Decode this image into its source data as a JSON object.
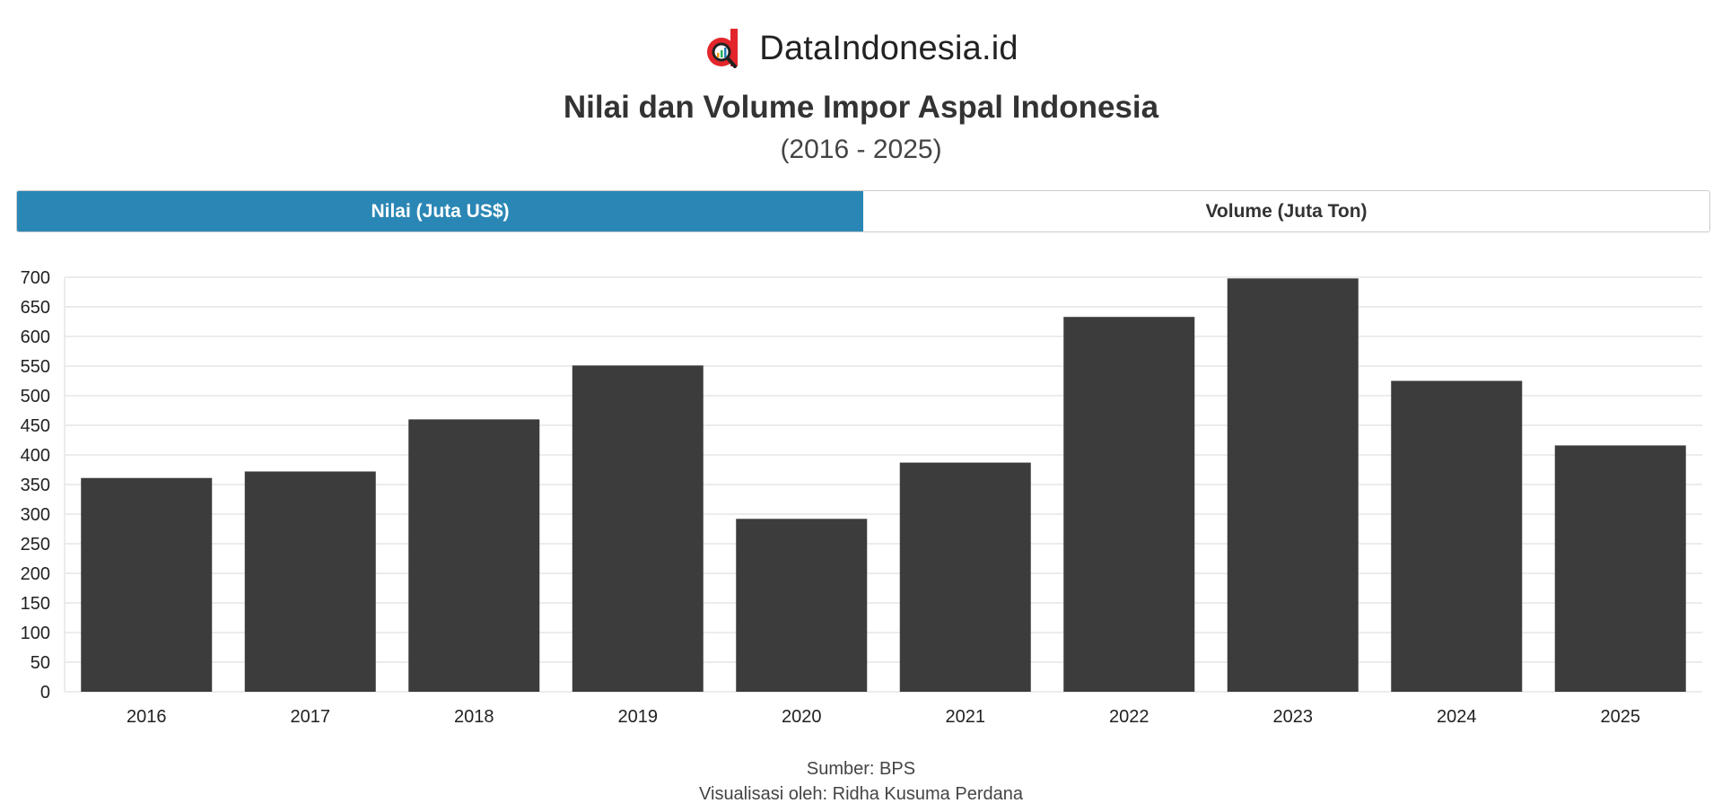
{
  "brand": {
    "name": "DataIndonesia.id",
    "colors": {
      "red": "#e3262b",
      "tab_active": "#2a87b5",
      "bar": "#3c3c3c"
    }
  },
  "header": {
    "title": "Nilai dan Volume Impor Aspal Indonesia",
    "subtitle": "(2016 - 2025)"
  },
  "tabs": [
    {
      "label": "Nilai (Juta US$)",
      "active": true
    },
    {
      "label": "Volume (Juta Ton)",
      "active": false
    }
  ],
  "chart_data": {
    "type": "bar",
    "title": "Nilai dan Volume Impor Aspal Indonesia",
    "xlabel": "",
    "ylabel": "Nilai (Juta US$)",
    "categories": [
      "2016",
      "2017",
      "2018",
      "2019",
      "2020",
      "2021",
      "2022",
      "2023",
      "2024",
      "2025"
    ],
    "values": [
      361,
      372,
      460,
      551,
      292,
      387,
      633,
      698,
      525,
      416
    ],
    "ylim": [
      0,
      700
    ],
    "yticks": [
      0,
      50,
      100,
      150,
      200,
      250,
      300,
      350,
      400,
      450,
      500,
      550,
      600,
      650,
      700
    ],
    "grid": true,
    "legend": "none"
  },
  "footer": {
    "source": "Sumber: BPS",
    "credit": "Visualisasi oleh: Ridha Kusuma Perdana"
  }
}
